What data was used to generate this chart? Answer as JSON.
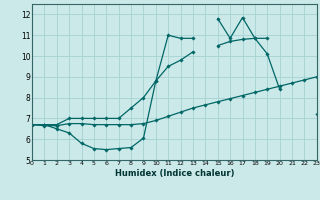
{
  "xlabel": "Humidex (Indice chaleur)",
  "x": [
    0,
    1,
    2,
    3,
    4,
    5,
    6,
    7,
    8,
    9,
    10,
    11,
    12,
    13,
    14,
    15,
    16,
    17,
    18,
    19,
    20,
    21,
    22,
    23
  ],
  "line1": [
    6.7,
    6.7,
    6.5,
    6.3,
    5.8,
    5.55,
    5.5,
    5.55,
    5.6,
    6.05,
    8.8,
    11.0,
    10.85,
    10.85,
    null,
    11.8,
    10.85,
    11.85,
    10.85,
    10.1,
    8.4,
    null,
    null,
    7.2
  ],
  "line2": [
    6.7,
    6.65,
    6.65,
    6.75,
    6.75,
    6.7,
    6.7,
    6.7,
    6.7,
    6.75,
    6.9,
    7.1,
    7.3,
    7.5,
    7.65,
    7.8,
    7.95,
    8.1,
    8.25,
    8.4,
    8.55,
    8.7,
    8.85,
    9.0
  ],
  "line3": [
    6.7,
    6.7,
    6.7,
    7.0,
    7.0,
    7.0,
    7.0,
    7.0,
    7.5,
    8.0,
    8.8,
    9.5,
    9.8,
    10.2,
    null,
    10.5,
    10.7,
    10.8,
    10.85,
    10.85,
    null,
    null,
    null,
    null
  ],
  "bg_color": "#cce9e9",
  "grid_color": "#aad4d4",
  "line_color": "#006666",
  "xlim": [
    0,
    23
  ],
  "ylim": [
    5,
    12.5
  ],
  "yticks": [
    5,
    6,
    7,
    8,
    9,
    10,
    11,
    12
  ],
  "xtick_labels": [
    "0",
    "1",
    "2",
    "3",
    "4",
    "5",
    "6",
    "7",
    "8",
    "9",
    "10",
    "11",
    "12",
    "13",
    "14",
    "15",
    "16",
    "17",
    "18",
    "19",
    "20",
    "21",
    "22",
    "23"
  ]
}
